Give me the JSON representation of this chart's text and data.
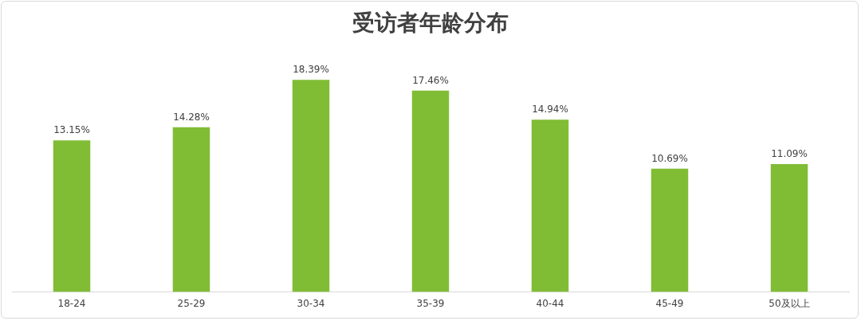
{
  "chart_data": {
    "type": "bar",
    "title": "受访者年龄分布",
    "categories": [
      "18-24",
      "25-29",
      "30-34",
      "35-39",
      "40-44",
      "45-49",
      "50及以上"
    ],
    "values": [
      13.15,
      14.28,
      18.39,
      17.46,
      14.94,
      10.69,
      11.09
    ],
    "value_labels": [
      "13.15%",
      "14.28%",
      "18.39%",
      "17.46%",
      "14.94%",
      "10.69%",
      "11.09%"
    ],
    "color": "#80bd35",
    "tick_labels": "x",
    "grid": false,
    "legend": false
  }
}
